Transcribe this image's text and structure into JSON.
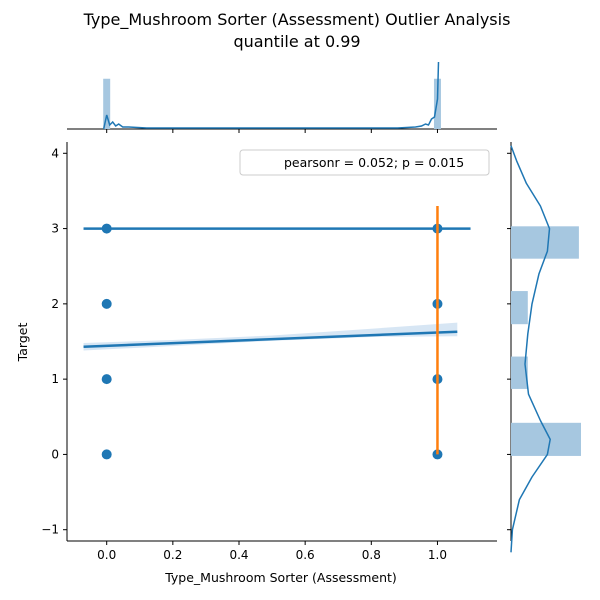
{
  "chart_data": {
    "type": "scatter",
    "title": "Type_Mushroom Sorter (Assessment) Outlier Analysis",
    "subtitle": "quantile at 0.99",
    "xlabel": "Type_Mushroom Sorter (Assessment)",
    "ylabel": "Target",
    "xlim": [
      -0.12,
      1.18
    ],
    "ylim": [
      -1.15,
      4.15
    ],
    "x_ticks": [
      "0.0",
      "0.2",
      "0.4",
      "0.6",
      "0.8",
      "1.0"
    ],
    "x_tick_values": [
      0.0,
      0.2,
      0.4,
      0.6,
      0.8,
      1.0
    ],
    "y_ticks": [
      "−1",
      "0",
      "1",
      "2",
      "3",
      "4"
    ],
    "y_tick_values": [
      -1,
      0,
      1,
      2,
      3,
      4
    ],
    "legend": {
      "text": "pearsonr = 0.052; p = 0.015",
      "placement": "top-right"
    },
    "points": [
      {
        "x": 0,
        "y": 0
      },
      {
        "x": 0,
        "y": 1
      },
      {
        "x": 0,
        "y": 2
      },
      {
        "x": 0,
        "y": 3
      },
      {
        "x": 1,
        "y": 0
      },
      {
        "x": 1,
        "y": 1
      },
      {
        "x": 1,
        "y": 2
      },
      {
        "x": 1,
        "y": 3
      }
    ],
    "regression_line": {
      "x": [
        -0.07,
        1.06
      ],
      "y": [
        1.43,
        1.63
      ]
    },
    "regression_band": {
      "x": [
        -0.07,
        0.2,
        0.5,
        0.8,
        1.06
      ],
      "lower": [
        1.38,
        1.44,
        1.51,
        1.56,
        1.57
      ],
      "upper": [
        1.48,
        1.52,
        1.58,
        1.67,
        1.75
      ]
    },
    "outlier_hline": {
      "y": 3,
      "x_from": -0.07,
      "x_to": 1.1
    },
    "outlier_vline": {
      "x": 1.0,
      "y_from": 0,
      "y_to": 3.3
    },
    "x_marginal": {
      "bars": [
        {
          "x": 0.0,
          "density": 2.4
        },
        {
          "x": 1.0,
          "density": 2.4
        }
      ],
      "kde_peak": 3.2
    },
    "y_marginal": {
      "bins": [
        {
          "y_from": -0.02,
          "y_to": 0.42,
          "count": 1.0
        },
        {
          "y_from": 0.87,
          "y_to": 1.3,
          "count": 0.24
        },
        {
          "y_from": 1.73,
          "y_to": 2.17,
          "count": 0.24
        },
        {
          "y_from": 2.6,
          "y_to": 3.03,
          "count": 0.97
        }
      ],
      "kde": [
        [
          -1.3,
          0.0
        ],
        [
          -1.0,
          0.02
        ],
        [
          -0.6,
          0.12
        ],
        [
          -0.3,
          0.3
        ],
        [
          0.0,
          0.52
        ],
        [
          0.2,
          0.56
        ],
        [
          0.45,
          0.42
        ],
        [
          0.8,
          0.25
        ],
        [
          1.2,
          0.2
        ],
        [
          1.6,
          0.24
        ],
        [
          2.0,
          0.3
        ],
        [
          2.4,
          0.4
        ],
        [
          2.7,
          0.52
        ],
        [
          3.0,
          0.55
        ],
        [
          3.3,
          0.42
        ],
        [
          3.6,
          0.22
        ],
        [
          3.9,
          0.08
        ],
        [
          4.1,
          0.0
        ]
      ]
    },
    "colors": {
      "main": "#1f77b4",
      "outlier": "#ff7f0e",
      "hist": "#a6c7e0",
      "band": "#c6dbef"
    }
  }
}
